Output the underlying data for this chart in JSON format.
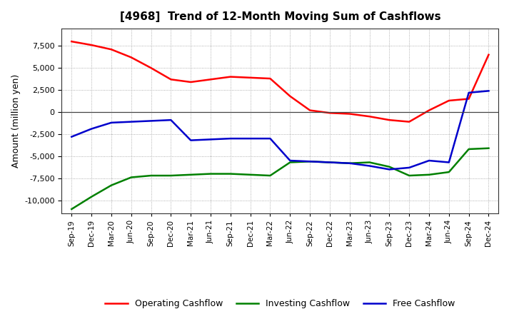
{
  "title": "[4968]  Trend of 12-Month Moving Sum of Cashflows",
  "ylabel": "Amount (million yen)",
  "x_labels": [
    "Sep-19",
    "Dec-19",
    "Mar-20",
    "Jun-20",
    "Sep-20",
    "Dec-20",
    "Mar-21",
    "Jun-21",
    "Sep-21",
    "Dec-21",
    "Mar-22",
    "Jun-22",
    "Sep-22",
    "Dec-22",
    "Mar-23",
    "Jun-23",
    "Sep-23",
    "Dec-23",
    "Mar-24",
    "Jun-24",
    "Sep-24",
    "Dec-24"
  ],
  "operating": [
    8000,
    7600,
    7100,
    6200,
    5000,
    3700,
    3400,
    3700,
    4000,
    3900,
    3800,
    1800,
    200,
    -100,
    -200,
    -500,
    -900,
    -1100,
    200,
    1300,
    1500,
    6500
  ],
  "investing": [
    -11000,
    -9600,
    -8300,
    -7400,
    -7200,
    -7200,
    -7100,
    -7000,
    -7000,
    -7100,
    -7200,
    -5700,
    -5600,
    -5700,
    -5800,
    -5700,
    -6200,
    -7200,
    -7100,
    -6800,
    -4200,
    -4100
  ],
  "free": [
    -2800,
    -1900,
    -1200,
    -1100,
    -1000,
    -900,
    -3200,
    -3100,
    -3000,
    -3000,
    -3000,
    -5500,
    -5600,
    -5700,
    -5800,
    -6100,
    -6500,
    -6300,
    -5500,
    -5700,
    2200,
    2400
  ],
  "operating_color": "#ff0000",
  "investing_color": "#008000",
  "free_color": "#0000cc",
  "background_color": "#ffffff",
  "grid_color": "#999999",
  "ylim": [
    -11500,
    9500
  ],
  "yticks": [
    -10000,
    -7500,
    -5000,
    -2500,
    0,
    2500,
    5000,
    7500
  ],
  "legend_labels": [
    "Operating Cashflow",
    "Investing Cashflow",
    "Free Cashflow"
  ]
}
